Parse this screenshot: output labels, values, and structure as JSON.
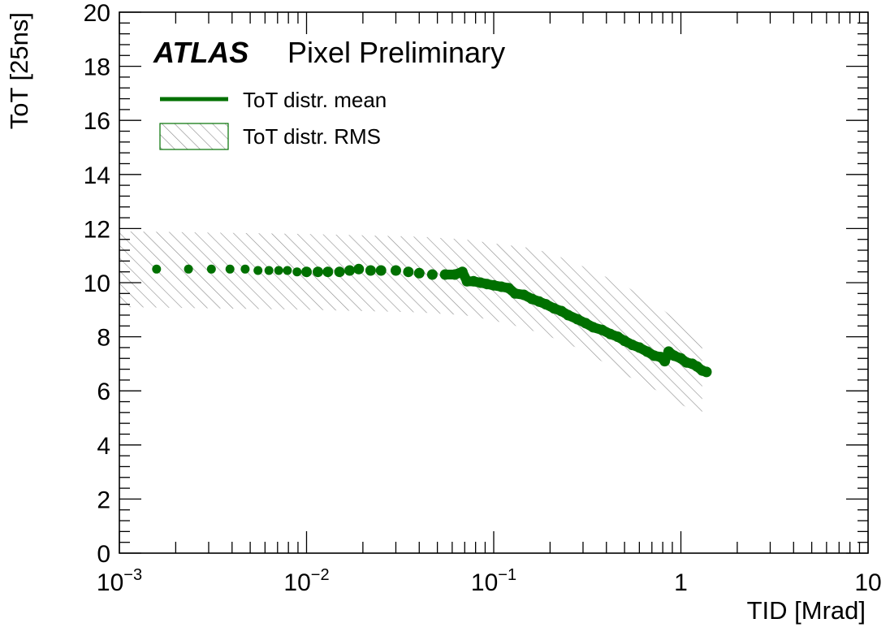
{
  "chart_data": {
    "type": "scatter",
    "x_scale": "log",
    "xlim": [
      0.001,
      10
    ],
    "ylim": [
      0,
      20
    ],
    "xlabel": "TID [Mrad]",
    "ylabel": "ToT [25ns]",
    "grid": false,
    "legend_position": "top-left",
    "brand": {
      "experiment": "ATLAS",
      "label": "Pixel Preliminary"
    },
    "x_ticks": [
      {
        "value": 0.001,
        "base": "10",
        "exp": "−3"
      },
      {
        "value": 0.01,
        "base": "10",
        "exp": "−2"
      },
      {
        "value": 0.1,
        "base": "10",
        "exp": "−1"
      },
      {
        "value": 1,
        "base": "1",
        "exp": ""
      },
      {
        "value": 10,
        "base": "10",
        "exp": ""
      }
    ],
    "y_ticks": [
      {
        "value": 0,
        "label": "0"
      },
      {
        "value": 2,
        "label": "2"
      },
      {
        "value": 4,
        "label": "4"
      },
      {
        "value": 6,
        "label": "6"
      },
      {
        "value": 8,
        "label": "8"
      },
      {
        "value": 10,
        "label": "10"
      },
      {
        "value": 12,
        "label": "12"
      },
      {
        "value": 14,
        "label": "14"
      },
      {
        "value": 16,
        "label": "16"
      },
      {
        "value": 18,
        "label": "18"
      },
      {
        "value": 20,
        "label": "20"
      }
    ],
    "legend": [
      {
        "label": "ToT distr. mean",
        "kind": "line"
      },
      {
        "label": "ToT distr. RMS",
        "kind": "hatch"
      }
    ],
    "series": [
      {
        "name": "ToT distr. mean",
        "color": "#007000",
        "x": [
          0.00158,
          0.00234,
          0.0031,
          0.0039,
          0.0047,
          0.0055,
          0.0063,
          0.0071,
          0.0079,
          0.0089,
          0.01,
          0.0115,
          0.013,
          0.015,
          0.017,
          0.019,
          0.022,
          0.025,
          0.03,
          0.035,
          0.04,
          0.047,
          0.055,
          0.062,
          0.068,
          0.072,
          0.078,
          0.085,
          0.092,
          0.1,
          0.11,
          0.12,
          0.13,
          0.145,
          0.16,
          0.175,
          0.19,
          0.21,
          0.23,
          0.25,
          0.28,
          0.31,
          0.34,
          0.38,
          0.42,
          0.46,
          0.5,
          0.55,
          0.6,
          0.66,
          0.72,
          0.78,
          0.82,
          0.86,
          0.92,
          1.0,
          1.07,
          1.15,
          1.22,
          1.3,
          1.37
        ],
        "y": [
          10.5,
          10.5,
          10.5,
          10.5,
          10.5,
          10.45,
          10.45,
          10.45,
          10.45,
          10.4,
          10.4,
          10.4,
          10.4,
          10.4,
          10.45,
          10.5,
          10.45,
          10.45,
          10.45,
          10.4,
          10.35,
          10.3,
          10.3,
          10.3,
          10.4,
          10.05,
          10.05,
          10.0,
          9.95,
          9.9,
          9.85,
          9.8,
          9.6,
          9.55,
          9.4,
          9.3,
          9.2,
          9.05,
          8.95,
          8.8,
          8.65,
          8.5,
          8.35,
          8.25,
          8.1,
          8.0,
          7.85,
          7.7,
          7.6,
          7.45,
          7.3,
          7.25,
          7.1,
          7.45,
          7.3,
          7.2,
          7.05,
          7.0,
          6.9,
          6.75,
          6.7
        ]
      }
    ],
    "rms_band": {
      "x": [
        0.001,
        0.01,
        0.04,
        0.07,
        0.1,
        0.15,
        0.2,
        0.3,
        0.5,
        0.8,
        1.0,
        1.3
      ],
      "upper": [
        11.9,
        11.8,
        11.7,
        11.6,
        11.45,
        11.3,
        11.1,
        10.6,
        9.9,
        9.0,
        8.5,
        8.0
      ],
      "lower": [
        9.1,
        9.0,
        8.9,
        8.8,
        8.6,
        8.3,
        8.0,
        7.5,
        6.6,
        5.9,
        5.5,
        5.1
      ]
    }
  }
}
